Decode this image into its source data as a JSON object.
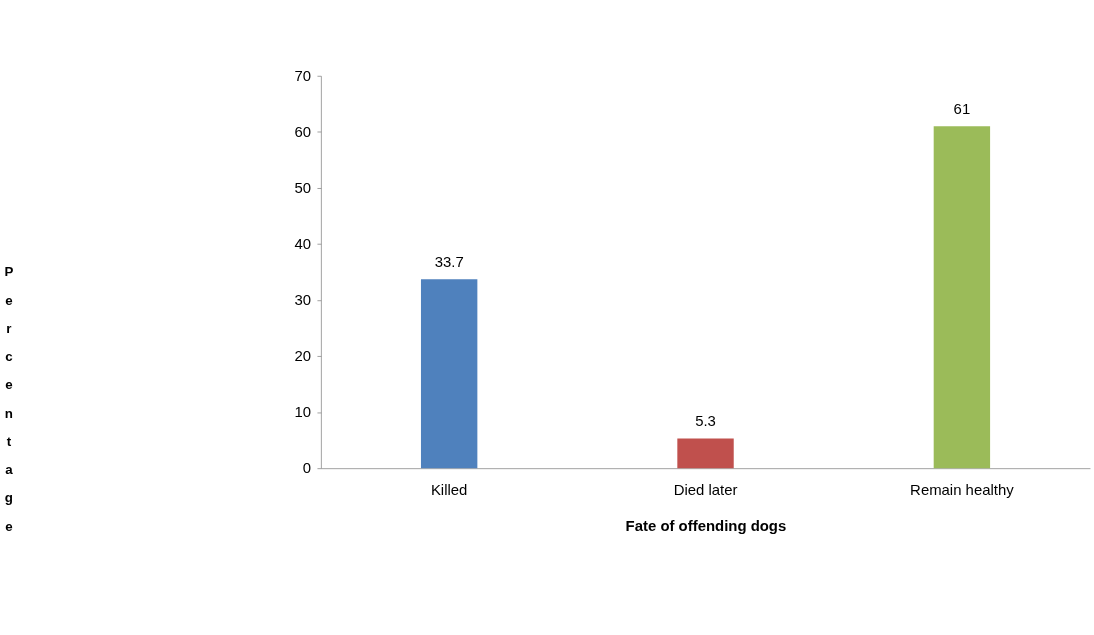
{
  "chart_data": {
    "type": "bar",
    "xlabel": "Fate of offending dogs",
    "ylabel": "Percentage",
    "categories": [
      "Killed",
      "Died later",
      "Remain healthy"
    ],
    "values": [
      33.7,
      5.3,
      61
    ],
    "colors": [
      "#4f81bd",
      "#c0504d",
      "#9bbb59"
    ],
    "ylim": [
      0,
      70
    ],
    "yticks": [
      0,
      10,
      20,
      30,
      40,
      50,
      60,
      70
    ],
    "data_labels": true,
    "grid": false,
    "legend": false
  }
}
